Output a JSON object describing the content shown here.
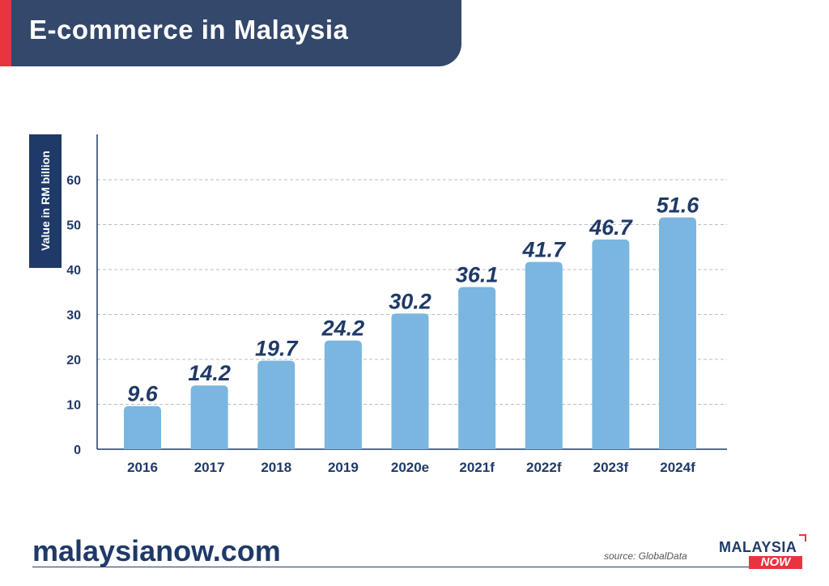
{
  "header": {
    "title": "E-commerce in Malaysia"
  },
  "footer": {
    "site": "malaysianow.com",
    "source": "source: GlobalData",
    "logo_top": "MALAYSIA",
    "logo_bottom": "NOW"
  },
  "colors": {
    "bar": "#7ab6e0",
    "label": "#1f3a68",
    "header_bg": "#33486a",
    "accent": "#e8343f"
  },
  "chart_data": {
    "type": "bar",
    "title": "E-commerce in Malaysia",
    "ylabel": "Value in RM billion",
    "xlabel": "",
    "categories": [
      "2016",
      "2017",
      "2018",
      "2019",
      "2020e",
      "2021f",
      "2022f",
      "2023f",
      "2024f"
    ],
    "values": [
      9.6,
      14.2,
      19.7,
      24.2,
      30.2,
      36.1,
      41.7,
      46.7,
      51.6
    ],
    "value_labels": [
      "9.6",
      "14.2",
      "19.7",
      "24.2",
      "30.2",
      "36.1",
      "41.7",
      "46.7",
      "51.6"
    ],
    "yticks": [
      0,
      10,
      20,
      30,
      40,
      50,
      60
    ],
    "ylim": [
      0,
      60
    ],
    "grid": true
  }
}
